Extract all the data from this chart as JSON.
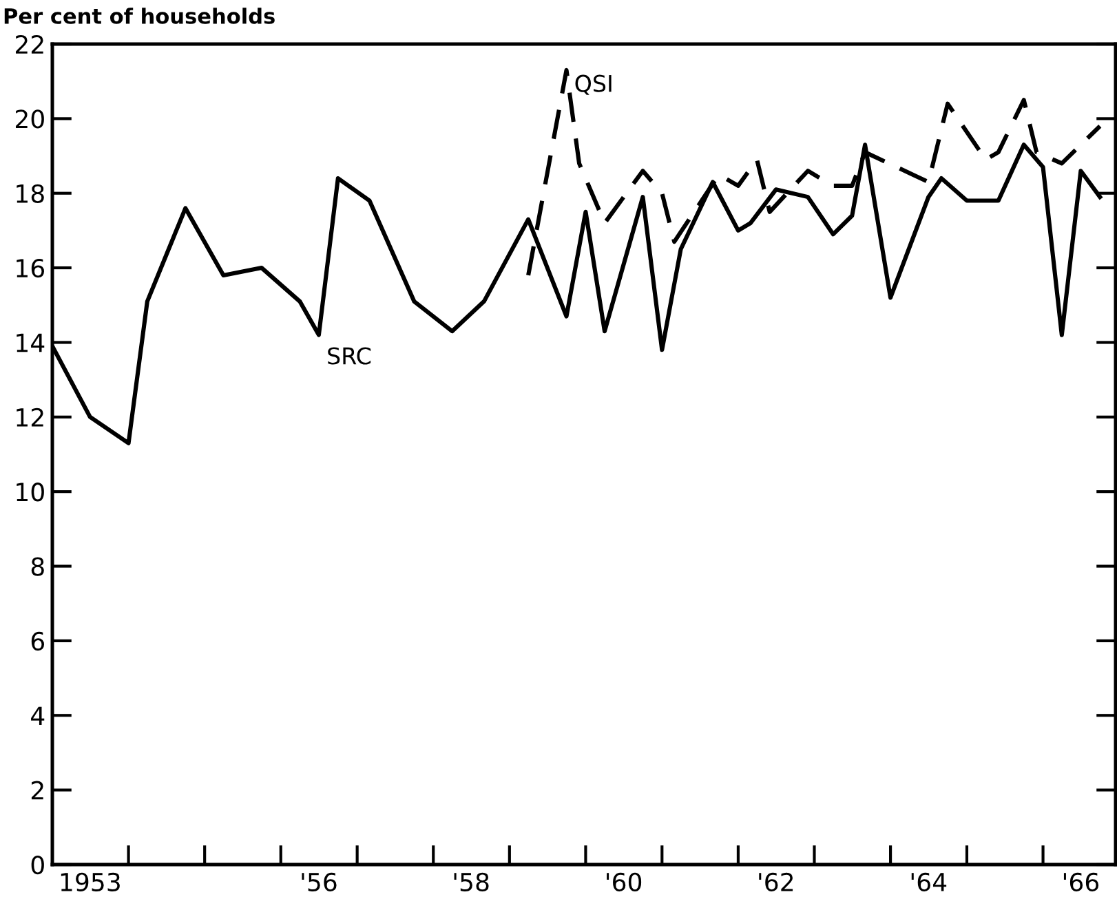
{
  "chart_data": {
    "type": "line",
    "ylabel": "Per cent of households",
    "xlim": [
      "1953-01-01",
      "1966-12-15"
    ],
    "ylim": [
      0,
      22
    ],
    "yticks": [
      0,
      2,
      4,
      6,
      8,
      10,
      12,
      14,
      16,
      18,
      20,
      22
    ],
    "xticks": [
      {
        "value": "1953-07",
        "label": "1953"
      },
      {
        "value": "1956-07",
        "label": "'56"
      },
      {
        "value": "1958-07",
        "label": "'58"
      },
      {
        "value": "1960-07",
        "label": "'60"
      },
      {
        "value": "1962-07",
        "label": "'62"
      },
      {
        "value": "1964-07",
        "label": "'64"
      },
      {
        "value": "1966-07",
        "label": "'66"
      },
      {
        "value": "1954-01",
        "label": null
      },
      {
        "value": "1955-01",
        "label": null
      },
      {
        "value": "1956-01",
        "label": null
      },
      {
        "value": "1957-01",
        "label": null
      },
      {
        "value": "1958-01",
        "label": null
      },
      {
        "value": "1959-01",
        "label": null
      },
      {
        "value": "1960-01",
        "label": null
      },
      {
        "value": "1961-01",
        "label": null
      },
      {
        "value": "1962-01",
        "label": null
      },
      {
        "value": "1963-01",
        "label": null
      },
      {
        "value": "1964-01",
        "label": null
      },
      {
        "value": "1965-01",
        "label": null
      },
      {
        "value": "1966-01",
        "label": null
      }
    ],
    "grid": false,
    "legend": false,
    "marker": "none",
    "series": [
      {
        "name": "SRC",
        "color": "#000000",
        "line_style": "solid",
        "x": [
          "1953-01",
          "1953-07",
          "1954-01",
          "1954-04",
          "1954-10",
          "1955-04",
          "1955-10",
          "1956-04",
          "1956-07",
          "1956-10",
          "1957-03",
          "1957-10",
          "1958-04",
          "1958-09",
          "1959-04",
          "1959-10",
          "1960-01",
          "1960-04",
          "1960-10",
          "1961-01",
          "1961-04",
          "1961-09",
          "1962-01",
          "1962-03",
          "1962-07",
          "1962-12",
          "1963-04",
          "1963-07",
          "1963-09",
          "1964-01",
          "1964-07",
          "1964-09",
          "1965-01",
          "1965-06",
          "1965-10",
          "1966-01",
          "1966-04",
          "1966-07",
          "1966-10"
        ],
        "values": [
          13.9,
          12.0,
          11.3,
          15.1,
          17.6,
          15.8,
          16.0,
          15.1,
          14.2,
          18.4,
          17.8,
          15.1,
          14.3,
          15.1,
          17.3,
          14.7,
          17.5,
          14.3,
          17.9,
          13.8,
          16.5,
          18.3,
          17.0,
          17.2,
          18.1,
          17.9,
          16.9,
          17.4,
          19.3,
          15.2,
          17.9,
          18.4,
          17.8,
          17.8,
          19.3,
          18.7,
          14.2,
          18.6,
          17.9
        ]
      },
      {
        "name": "QSI",
        "color": "#000000",
        "line_style": "dashed",
        "x": [
          "1959-04",
          "1959-10",
          "1959-12",
          "1960-04",
          "1960-10",
          "1961-01",
          "1961-03",
          "1961-10",
          "1962-01",
          "1962-04",
          "1962-06",
          "1962-12",
          "1963-04",
          "1963-07",
          "1963-09",
          "1964-07",
          "1964-10",
          "1965-04",
          "1965-06",
          "1965-10",
          "1965-12",
          "1966-04",
          "1966-07",
          "1966-10"
        ],
        "values": [
          15.8,
          21.3,
          18.8,
          17.2,
          18.6,
          18.0,
          16.7,
          18.5,
          18.2,
          18.9,
          17.5,
          18.6,
          18.2,
          18.2,
          19.1,
          18.3,
          20.4,
          18.9,
          19.1,
          20.5,
          19.1,
          18.8,
          19.3,
          19.8
        ]
      }
    ]
  }
}
